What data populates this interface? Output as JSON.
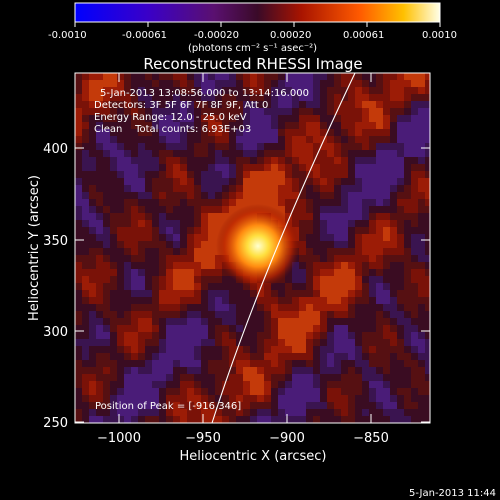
{
  "colorbar": {
    "tick_labels": [
      "-0.0010",
      "-0.00061",
      "-0.00020",
      "0.00020",
      "0.00061",
      "0.0010"
    ],
    "units": "(photons cm⁻² s⁻¹ asec⁻²)"
  },
  "figure": {
    "title": "Reconstructed RHESSI Image",
    "xlabel": "Heliocentric X (arcsec)",
    "ylabel": "Heliocentric Y (arcsec)",
    "x_ticks": [
      "−1000",
      "−950",
      "−900",
      "−850"
    ],
    "y_ticks": [
      "400",
      "350",
      "300",
      "250"
    ],
    "xlim": [
      -1015,
      -825
    ],
    "ylim": [
      247,
      442
    ]
  },
  "info": {
    "time_range": "5-Jan-2013 13:08:56.000 to 13:14:16.000",
    "detectors": "Detectors: 3F 5F 6F 7F 8F 9F, Att 0",
    "energy": "Energy Range: 12.0 - 25.0 keV",
    "clean_line": "Clean    Total counts: 6.93E+03",
    "peak": "Position of Peak = [-916,346]"
  },
  "footer": {
    "timestamp": "5-Jan-2013 11:44"
  },
  "source": {
    "peak_x": -916,
    "peak_y": 346
  },
  "colors": {
    "background": "#000000",
    "limb": "#ffffff",
    "peak": "#ffff80"
  }
}
